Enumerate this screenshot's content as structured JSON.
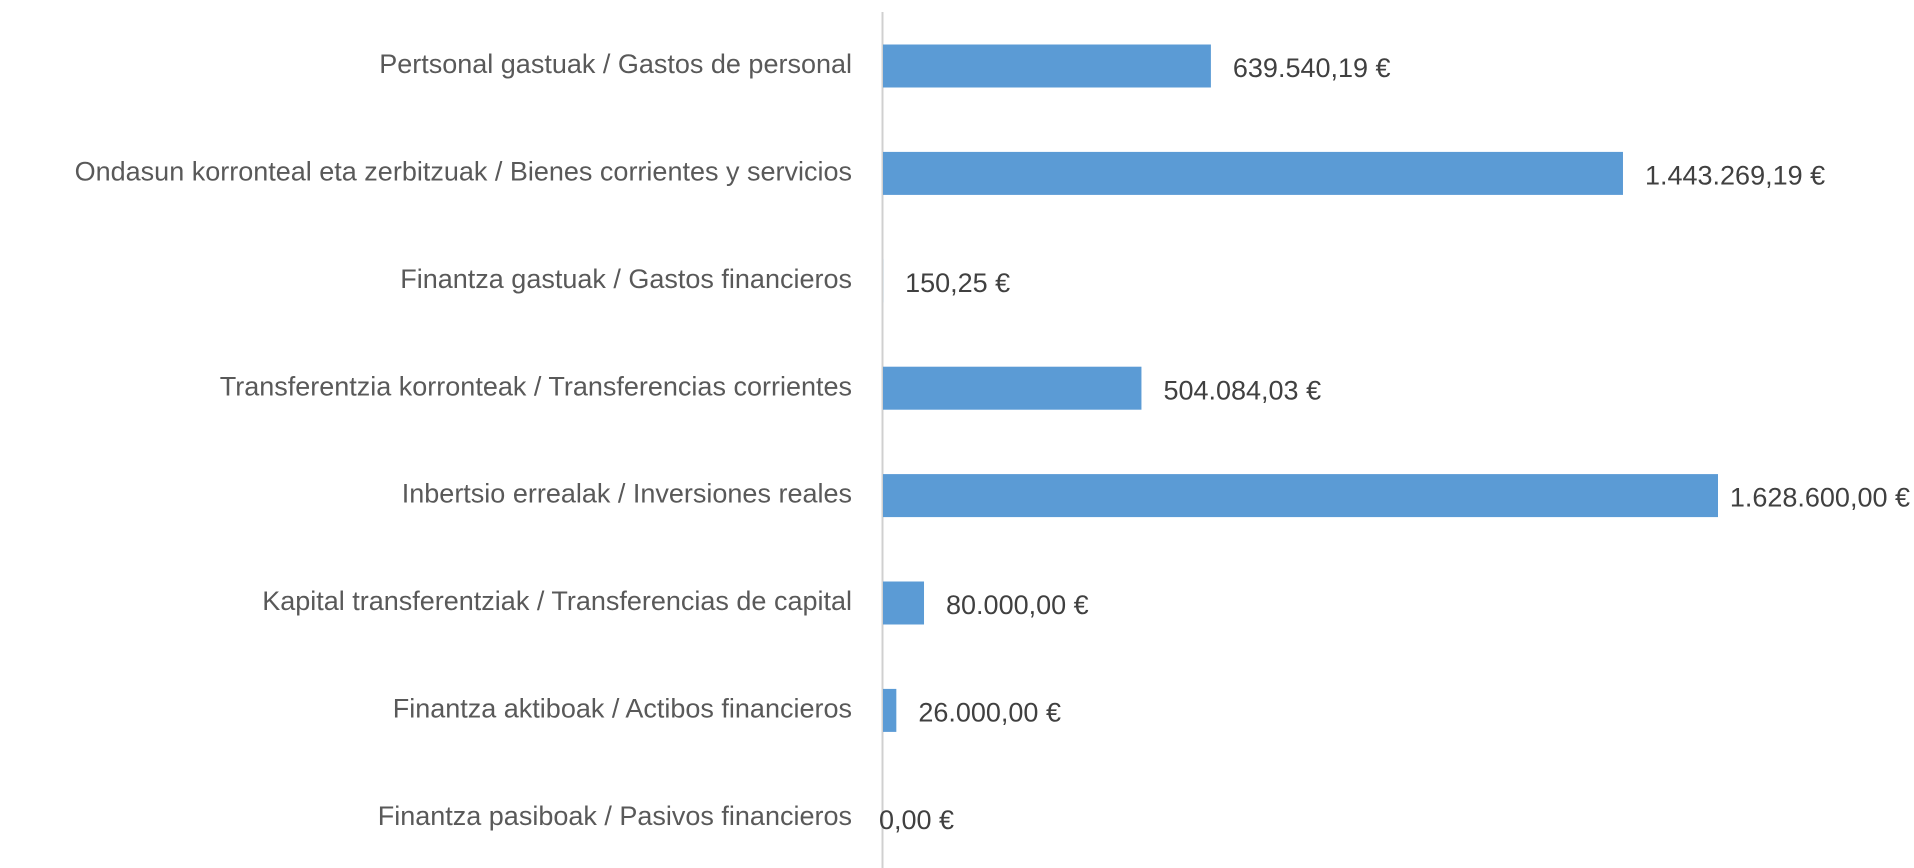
{
  "chart_data": {
    "type": "bar",
    "orientation": "horizontal",
    "categories": [
      "Pertsonal gastuak / Gastos de personal",
      "Ondasun korronteal eta zerbitzuak / Bienes corrientes y servicios",
      "Finantza gastuak / Gastos financieros",
      "Transferentzia korronteak / Transferencias corrientes",
      "Inbertsio errealak / Inversiones reales",
      "Kapital transferentziak / Transferencias de capital",
      "Finantza aktiboak / Actibos financieros",
      "Finantza pasiboak / Pasivos financieros"
    ],
    "values": [
      639540.19,
      1443269.19,
      150.25,
      504084.03,
      1628600,
      80000,
      26000,
      0
    ],
    "value_labels": [
      "639.540,19 €",
      "1.443.269,19 €",
      "150,25 €",
      "504.084,03 €",
      "1.628.600,00 €",
      "80.000,00 €",
      "26.000,00 €",
      "0,00 €"
    ],
    "color": "#5b9bd5"
  }
}
